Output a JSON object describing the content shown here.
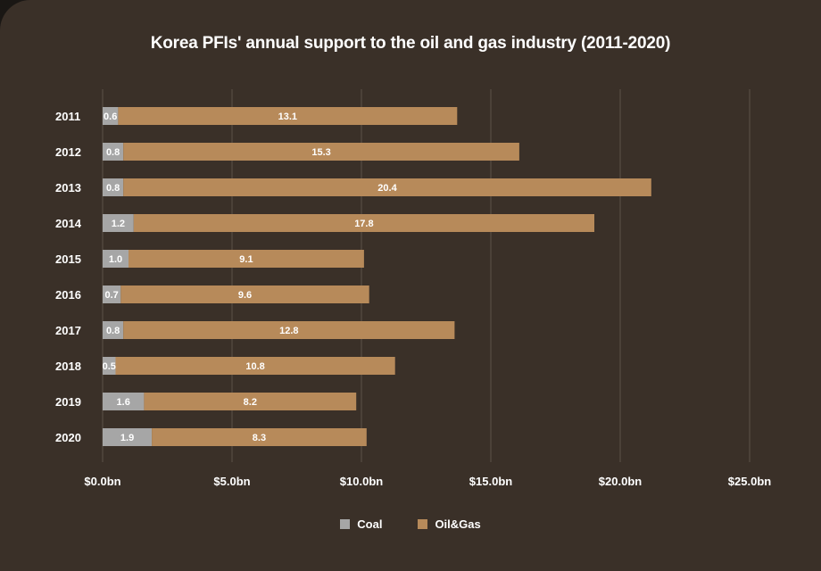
{
  "title": "Korea PFIs' annual support to the oil and gas industry (2011-2020)",
  "colors": {
    "background": "#3a3028",
    "coal": "#a6a6a6",
    "oilgas": "#b78a5a",
    "grid": "#5c5249",
    "text": "#ffffff"
  },
  "chart_data": {
    "type": "bar",
    "orientation": "horizontal",
    "stacked": true,
    "title": "Korea PFIs' annual support to the oil and gas industry (2011-2020)",
    "categories": [
      "2011",
      "2012",
      "2013",
      "2014",
      "2015",
      "2016",
      "2017",
      "2018",
      "2019",
      "2020"
    ],
    "series": [
      {
        "name": "Coal",
        "values": [
          0.6,
          0.8,
          0.8,
          1.2,
          1.0,
          0.7,
          0.8,
          0.5,
          1.6,
          1.9
        ],
        "labels": [
          "0.6",
          "0.8",
          "0.8",
          "1.2",
          "1.0",
          "0.7",
          "0.8",
          "0.5",
          "1.6",
          "1.9"
        ]
      },
      {
        "name": "Oil&Gas",
        "values": [
          13.1,
          15.3,
          20.4,
          17.8,
          9.1,
          9.6,
          12.8,
          10.8,
          8.2,
          8.3
        ],
        "labels": [
          "13.1",
          "15.3",
          "20.4",
          "17.8",
          "9.1",
          "9.6",
          "12.8",
          "10.8",
          "8.2",
          "8.3"
        ]
      }
    ],
    "xlim": [
      0,
      25
    ],
    "xticks": [
      0,
      5,
      10,
      15,
      20,
      25
    ],
    "xtick_labels": [
      "$0.0bn",
      "$5.0bn",
      "$10.0bn",
      "$15.0bn",
      "$20.0bn",
      "$25.0bn"
    ],
    "grid": "vertical",
    "legend_position": "bottom"
  },
  "legend": [
    {
      "label": "Coal",
      "color": "#a6a6a6"
    },
    {
      "label": "Oil&Gas",
      "color": "#b78a5a"
    }
  ]
}
